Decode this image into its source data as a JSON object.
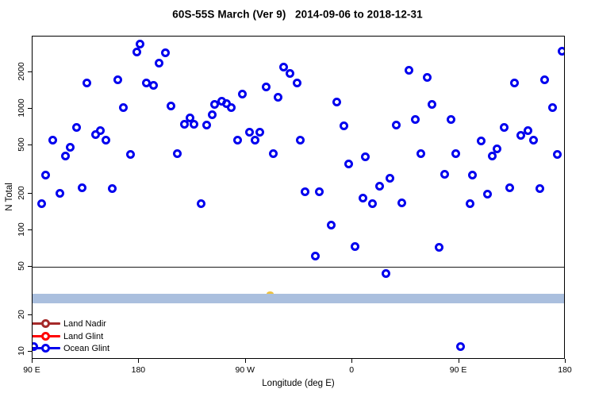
{
  "title": "60S-55S March (Ver 9)   2014-09-06 to 2018-12-31",
  "chart_data": {
    "type": "scatter",
    "title": "60S-55S March (Ver 9)   2014-09-06 to 2018-12-31",
    "xlabel": "Longitude (deg E)",
    "ylabel": "N Total",
    "y_scale": "log10",
    "y_ticks": [
      10,
      20,
      50,
      100,
      200,
      500,
      1000,
      2000
    ],
    "y_range_approx": [
      9,
      3900
    ],
    "x_axis_deg_span": [
      90,
      540
    ],
    "x_ticks": [
      {
        "deg": 90,
        "label": "90 E"
      },
      {
        "deg": 180,
        "label": "180"
      },
      {
        "deg": 270,
        "label": "90 W"
      },
      {
        "deg": 360,
        "label": "0"
      },
      {
        "deg": 450,
        "label": "90 E"
      },
      {
        "deg": 540,
        "label": "180"
      }
    ],
    "grid": false,
    "reference_line_n": 50,
    "band": {
      "n_low": 25,
      "n_high": 30,
      "color": "#aabfde"
    },
    "legend_position": "bottom-left-inside",
    "legend": [
      {
        "label": "Land Nadir",
        "color": "#a52a2a"
      },
      {
        "label": "Land Glint",
        "color": "#ff0000"
      },
      {
        "label": "Ocean Glint",
        "color": "#0000ee"
      }
    ],
    "obscured_point": {
      "deg": 290,
      "n": 30.5,
      "color": "#eec23f",
      "note": "mostly hidden behind band"
    },
    "series": [
      {
        "name": "Land Nadir",
        "color": "#a52a2a",
        "points": []
      },
      {
        "name": "Land Glint",
        "color": "#ff0000",
        "points": []
      },
      {
        "name": "Ocean Glint",
        "color": "#0000ee",
        "points": [
          [
            181,
            3400
          ],
          [
            178,
            2950
          ],
          [
            202,
            2900
          ],
          [
            197,
            2360
          ],
          [
            136,
            1640
          ],
          [
            162,
            1720
          ],
          [
            186,
            1640
          ],
          [
            192,
            1550
          ],
          [
            167,
            1020
          ],
          [
            207,
            1050
          ],
          [
            218,
            750
          ],
          [
            223,
            835
          ],
          [
            226,
            750
          ],
          [
            237,
            730
          ],
          [
            244,
            1090
          ],
          [
            242,
            900
          ],
          [
            127,
            700
          ],
          [
            143,
            610
          ],
          [
            147,
            665
          ],
          [
            152,
            555
          ],
          [
            107,
            550
          ],
          [
            122,
            480
          ],
          [
            118,
            410
          ],
          [
            173,
            420
          ],
          [
            212,
            425
          ],
          [
            302,
            2220
          ],
          [
            307,
            1940
          ],
          [
            313,
            1620
          ],
          [
            287,
            1520
          ],
          [
            267,
            1330
          ],
          [
            297,
            1240
          ],
          [
            250,
            1160
          ],
          [
            254,
            1110
          ],
          [
            258,
            1030
          ],
          [
            347,
            1130
          ],
          [
            353,
            720
          ],
          [
            273,
            645
          ],
          [
            282,
            640
          ],
          [
            263,
            550
          ],
          [
            278,
            550
          ],
          [
            316,
            555
          ],
          [
            293,
            425
          ],
          [
            371,
            400
          ],
          [
            357,
            350
          ],
          [
            537,
            3000
          ],
          [
            408,
            2060
          ],
          [
            423,
            1800
          ],
          [
            497,
            1640
          ],
          [
            522,
            1745
          ],
          [
            427,
            1090
          ],
          [
            529,
            1030
          ],
          [
            413,
            820
          ],
          [
            443,
            820
          ],
          [
            397,
            730
          ],
          [
            488,
            700
          ],
          [
            502,
            600
          ],
          [
            508,
            665
          ],
          [
            513,
            555
          ],
          [
            469,
            540
          ],
          [
            418,
            430
          ],
          [
            447,
            430
          ],
          [
            482,
            470
          ],
          [
            478,
            410
          ],
          [
            533,
            420
          ],
          [
            101,
            285
          ],
          [
            132,
            225
          ],
          [
            157,
            222
          ],
          [
            113,
            200
          ],
          [
            98,
            165
          ],
          [
            232,
            165
          ],
          [
            392,
            270
          ],
          [
            383,
            232
          ],
          [
            320,
            206
          ],
          [
            332,
            206
          ],
          [
            369,
            185
          ],
          [
            377,
            165
          ],
          [
            342,
            110
          ],
          [
            362,
            73
          ],
          [
            329,
            61
          ],
          [
            388,
            44
          ],
          [
            438,
            290
          ],
          [
            461,
            283
          ],
          [
            493,
            225
          ],
          [
            518,
            222
          ],
          [
            474,
            197
          ],
          [
            402,
            167
          ],
          [
            459,
            165
          ],
          [
            433,
            72
          ],
          [
            451,
            11
          ],
          [
            91,
            11
          ]
        ]
      }
    ]
  }
}
